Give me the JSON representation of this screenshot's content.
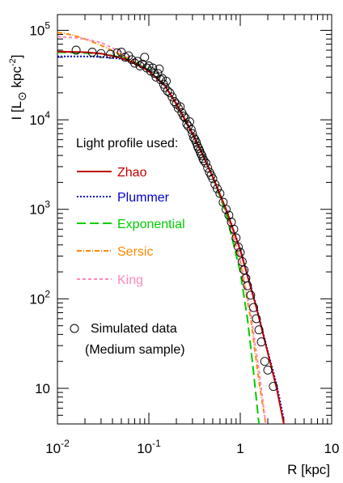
{
  "chart_data": {
    "type": "scatter",
    "xlabel": "R [kpc]",
    "ylabel_main": "I [L",
    "ylabel_sub": "⊙",
    "ylabel_unit": " kpc",
    "ylabel_sup": "-2",
    "ylabel_close": "]",
    "xscale": "log",
    "yscale": "log",
    "xlim": [
      0.01,
      10
    ],
    "ylim": [
      4,
      150000
    ],
    "x_ticks": [
      {
        "value": 0.01,
        "base": "10",
        "exp": "-2"
      },
      {
        "value": 0.1,
        "base": "10",
        "exp": "-1"
      },
      {
        "value": 1,
        "base": "1",
        "exp": ""
      },
      {
        "value": 10,
        "base": "10",
        "exp": ""
      }
    ],
    "y_ticks": [
      {
        "value": 10,
        "base": "10",
        "exp": ""
      },
      {
        "value": 100,
        "base": "10",
        "exp": "2"
      },
      {
        "value": 1000,
        "base": "10",
        "exp": "3"
      },
      {
        "value": 10000,
        "base": "10",
        "exp": "4"
      },
      {
        "value": 100000,
        "base": "10",
        "exp": "5"
      }
    ],
    "grid": false,
    "legend_title": "Light profile used:",
    "series": [
      {
        "name": "Zhao",
        "color": "#c00000",
        "dash": "solid",
        "x": [
          0.01,
          0.02,
          0.03,
          0.05,
          0.07,
          0.1,
          0.15,
          0.2,
          0.3,
          0.4,
          0.5,
          0.7,
          1,
          1.5,
          2,
          2.5,
          3
        ],
        "y": [
          58000,
          57000,
          55000,
          49000,
          43000,
          35000,
          24000,
          15000,
          7000,
          3800,
          2300,
          1000,
          350,
          80,
          25,
          10,
          4
        ]
      },
      {
        "name": "Plummer",
        "color": "#0000cc",
        "dash": "2,2",
        "x": [
          0.01,
          0.02,
          0.03,
          0.05,
          0.07,
          0.1,
          0.15,
          0.2,
          0.3,
          0.4,
          0.5,
          0.7,
          1,
          1.5,
          2,
          2.5,
          3
        ],
        "y": [
          51000,
          51000,
          50500,
          48000,
          43000,
          35000,
          24000,
          15000,
          7000,
          3800,
          2300,
          1000,
          360,
          83,
          26,
          11,
          4.5
        ]
      },
      {
        "name": "Exponential",
        "color": "#00cc00",
        "dash": "11,5",
        "x": [
          0.01,
          0.03,
          0.05,
          0.07,
          0.1,
          0.15,
          0.2,
          0.3,
          0.4,
          0.5,
          0.7,
          1,
          1.2,
          1.4,
          1.6
        ],
        "y": [
          57000,
          55000,
          50000,
          44000,
          36000,
          24000,
          15000,
          7000,
          3800,
          2300,
          900,
          200,
          60,
          15,
          4
        ]
      },
      {
        "name": "Sersic",
        "color": "#ff8800",
        "dash": "6,2,1,2",
        "x": [
          0.01,
          0.015,
          0.02,
          0.03,
          0.05,
          0.07,
          0.1,
          0.15,
          0.2,
          0.3,
          0.5,
          0.7,
          1,
          1.3,
          1.6,
          1.9
        ],
        "y": [
          95000,
          88000,
          80000,
          68000,
          53000,
          44000,
          35000,
          24000,
          15500,
          7300,
          2300,
          950,
          260,
          60,
          12,
          4
        ]
      },
      {
        "name": "King",
        "color": "#ff88bb",
        "dash": "4,3",
        "x": [
          0.01,
          0.015,
          0.02,
          0.03,
          0.05,
          0.07,
          0.1,
          0.15,
          0.2,
          0.3,
          0.5,
          0.7,
          1,
          1.3,
          1.6,
          1.9
        ],
        "y": [
          85000,
          83000,
          80000,
          73000,
          57000,
          46000,
          35000,
          24000,
          15500,
          7300,
          2300,
          950,
          270,
          70,
          16,
          4
        ]
      }
    ],
    "scatter": {
      "name": "Simulated data",
      "name_line2": "(Medium sample)",
      "points": [
        [
          0.016,
          60000
        ],
        [
          0.024,
          57000
        ],
        [
          0.03,
          55000
        ],
        [
          0.038,
          54000
        ],
        [
          0.045,
          56000
        ],
        [
          0.05,
          57000
        ],
        [
          0.055,
          50000
        ],
        [
          0.06,
          52000
        ],
        [
          0.065,
          47000
        ],
        [
          0.07,
          43000
        ],
        [
          0.075,
          45000
        ],
        [
          0.08,
          40000
        ],
        [
          0.085,
          42000
        ],
        [
          0.09,
          50000
        ],
        [
          0.095,
          38000
        ],
        [
          0.1,
          40000
        ],
        [
          0.105,
          35000
        ],
        [
          0.11,
          38000
        ],
        [
          0.115,
          33000
        ],
        [
          0.12,
          30000
        ],
        [
          0.125,
          33000
        ],
        [
          0.13,
          37000
        ],
        [
          0.135,
          28000
        ],
        [
          0.14,
          29000
        ],
        [
          0.145,
          25000
        ],
        [
          0.15,
          23000
        ],
        [
          0.155,
          27000
        ],
        [
          0.16,
          21000
        ],
        [
          0.17,
          20000
        ],
        [
          0.18,
          18000
        ],
        [
          0.19,
          16000
        ],
        [
          0.2,
          15000
        ],
        [
          0.21,
          13500
        ],
        [
          0.22,
          14000
        ],
        [
          0.23,
          12000
        ],
        [
          0.24,
          11000
        ],
        [
          0.25,
          10500
        ],
        [
          0.26,
          9000
        ],
        [
          0.27,
          8500
        ],
        [
          0.28,
          9500
        ],
        [
          0.29,
          7800
        ],
        [
          0.3,
          7000
        ],
        [
          0.31,
          6300
        ],
        [
          0.32,
          6000
        ],
        [
          0.33,
          5600
        ],
        [
          0.34,
          5100
        ],
        [
          0.35,
          4800
        ],
        [
          0.36,
          4500
        ],
        [
          0.37,
          4200
        ],
        [
          0.38,
          4000
        ],
        [
          0.39,
          3700
        ],
        [
          0.4,
          3500
        ],
        [
          0.42,
          3300
        ],
        [
          0.44,
          2900
        ],
        [
          0.46,
          2600
        ],
        [
          0.48,
          2400
        ],
        [
          0.5,
          2200
        ],
        [
          0.53,
          1900
        ],
        [
          0.56,
          1700
        ],
        [
          0.6,
          1500
        ],
        [
          0.65,
          1200
        ],
        [
          0.7,
          1000
        ],
        [
          0.75,
          860
        ],
        [
          0.8,
          720
        ],
        [
          0.85,
          600
        ],
        [
          0.9,
          480
        ],
        [
          0.95,
          380
        ],
        [
          1.0,
          330
        ],
        [
          1.05,
          260
        ],
        [
          1.1,
          210
        ],
        [
          1.15,
          170
        ],
        [
          1.2,
          140
        ],
        [
          1.3,
          110
        ],
        [
          1.4,
          80
        ],
        [
          1.5,
          60
        ],
        [
          1.6,
          45
        ],
        [
          1.7,
          33
        ],
        [
          1.85,
          20
        ],
        [
          2.0,
          16
        ],
        [
          2.3,
          10.5
        ]
      ]
    }
  }
}
